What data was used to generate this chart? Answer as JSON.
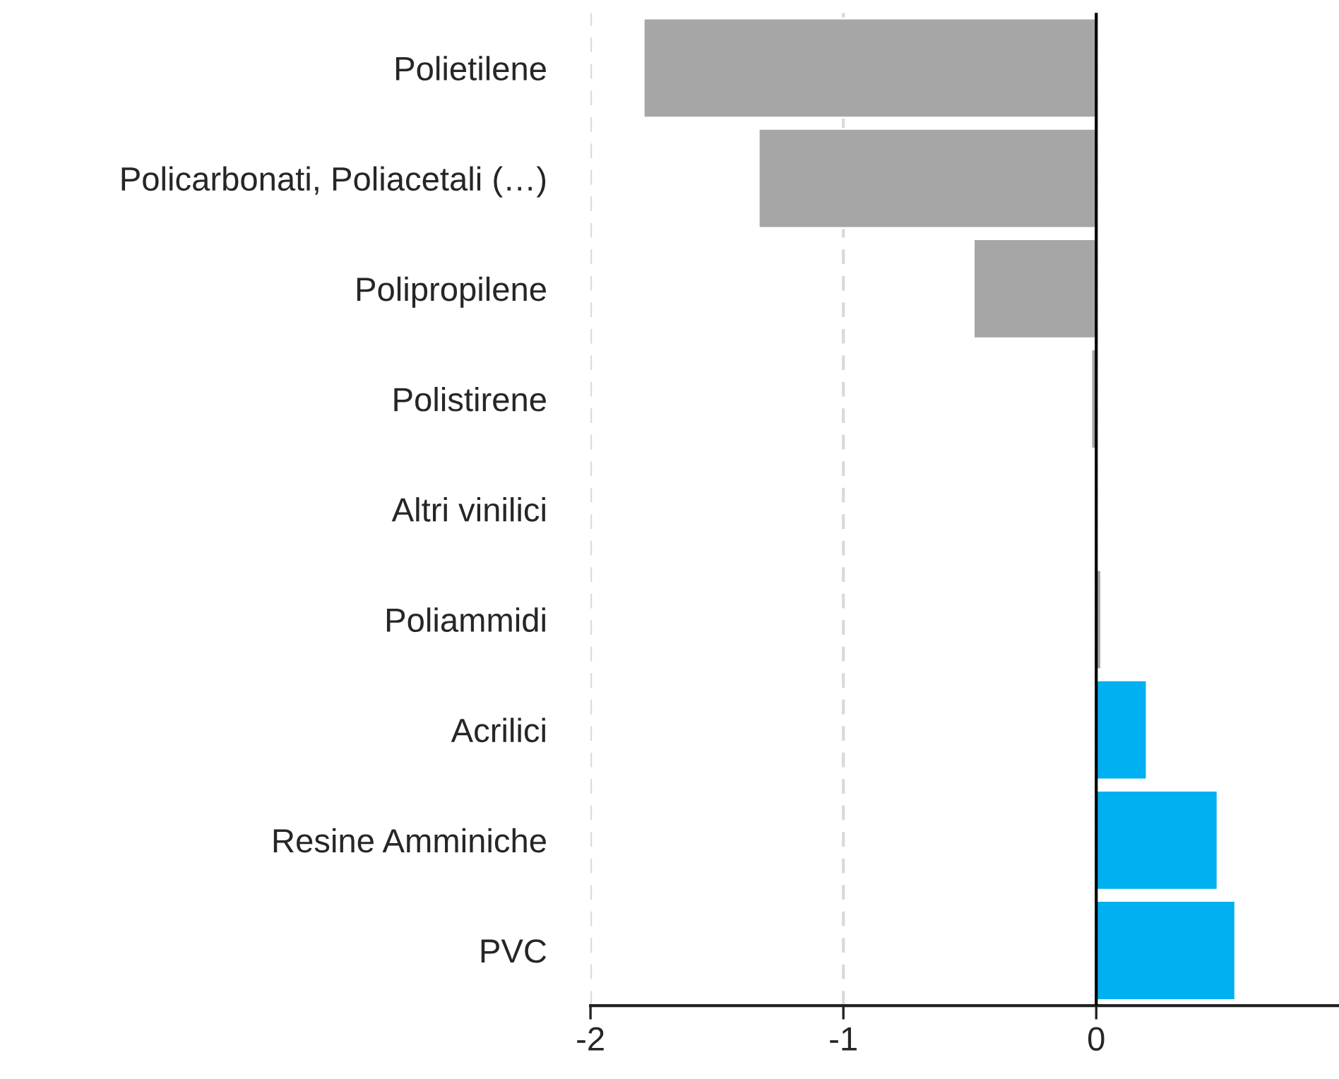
{
  "chart_data": {
    "type": "bar",
    "orientation": "horizontal",
    "categories": [
      "Polietilene",
      "Policarbonati, Poliacetali (…)",
      "Polipropilene",
      "Polistirene",
      "Altri vinilici",
      "Poliammidi",
      "Acrilici",
      "Resine Amminiche",
      "PVC"
    ],
    "values": [
      -1.79,
      -1.335,
      -0.485,
      -0.02,
      -0.005,
      0.02,
      0.2,
      0.48,
      0.55
    ],
    "colors": [
      "#a6a6a6",
      "#a6a6a6",
      "#a6a6a6",
      "#a6a6a6",
      "#a6a6a6",
      "#a6a6a6",
      "#00b0f0",
      "#00b0f0",
      "#00b0f0"
    ],
    "xlim": [
      -2,
      0.96
    ],
    "xticks": [
      -2,
      -1,
      0
    ],
    "ref_lines": [
      {
        "axis": "x",
        "value": 0,
        "color": "#000000"
      }
    ],
    "grid": "x",
    "legend": false
  }
}
